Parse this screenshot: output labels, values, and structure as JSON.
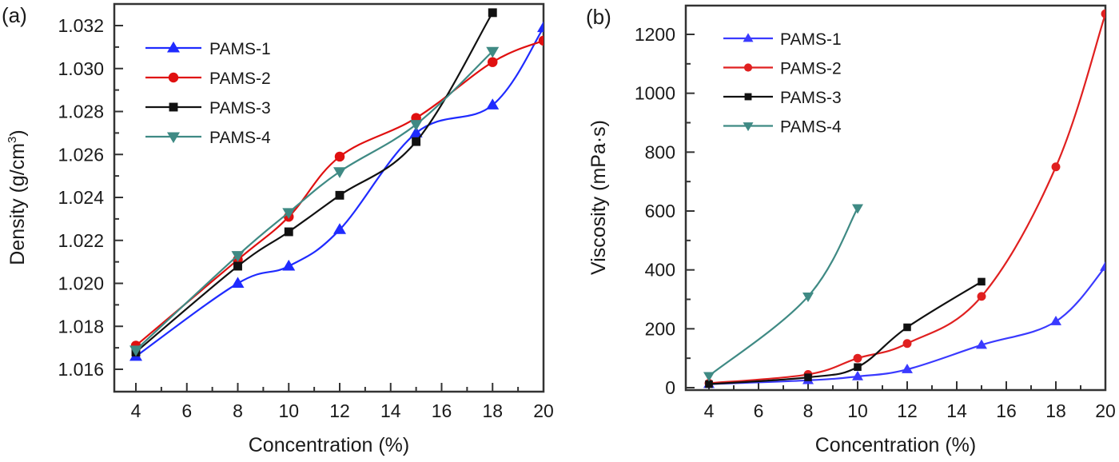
{
  "chart_data": [
    {
      "id": "a",
      "type": "line",
      "panel_label": "(a)",
      "title": "",
      "xlabel": "Concentration (%)",
      "ylabel": "Density (g/cm³)",
      "ylabel_parts": {
        "main": "Density (g/cm",
        "sup": "3",
        "end": ")"
      },
      "xlim": [
        4,
        20
      ],
      "ylim": [
        1.015,
        1.0332
      ],
      "xticks": [
        4,
        6,
        8,
        10,
        12,
        14,
        16,
        18,
        20
      ],
      "xtick_labels": [
        "4",
        "6",
        "8",
        "10",
        "12",
        "14",
        "16",
        "18",
        "20"
      ],
      "yticks": [
        1.016,
        1.018,
        1.02,
        1.022,
        1.024,
        1.026,
        1.028,
        1.03,
        1.032
      ],
      "ytick_labels": [
        "1.016",
        "1.018",
        "1.020",
        "1.022",
        "1.024",
        "1.026",
        "1.028",
        "1.030",
        "1.032"
      ],
      "grid": false,
      "legend_position": "top-left",
      "series": [
        {
          "name": "PAMS-1",
          "color": "#1f2bff",
          "marker": "triangle-up",
          "x": [
            4,
            8,
            10,
            12,
            15,
            18,
            20
          ],
          "values": [
            1.0166,
            1.02,
            1.0208,
            1.0225,
            1.027,
            1.0283,
            1.0319
          ]
        },
        {
          "name": "PAMS-2",
          "color": "#e01010",
          "marker": "circle",
          "x": [
            4,
            8,
            10,
            12,
            15,
            18,
            20
          ],
          "values": [
            1.0171,
            1.0211,
            1.0231,
            1.0259,
            1.0277,
            1.0303,
            1.0313
          ]
        },
        {
          "name": "PAMS-3",
          "color": "#111111",
          "marker": "square",
          "x": [
            4,
            8,
            10,
            12,
            15,
            18
          ],
          "values": [
            1.0168,
            1.0208,
            1.0224,
            1.0241,
            1.0266,
            1.0326
          ]
        },
        {
          "name": "PAMS-4",
          "color": "#3f8a84",
          "marker": "triangle-down",
          "x": [
            4,
            8,
            10,
            12,
            15,
            18
          ],
          "values": [
            1.0169,
            1.0213,
            1.0233,
            1.0252,
            1.0274,
            1.0308
          ]
        }
      ]
    },
    {
      "id": "b",
      "type": "line",
      "panel_label": "(b)",
      "title": "",
      "xlabel": "Concentration (%)",
      "ylabel": "Viscosity (mPa·s)",
      "xlim": [
        4,
        20
      ],
      "ylim": [
        -8,
        1300
      ],
      "xticks": [
        4,
        6,
        8,
        10,
        12,
        14,
        16,
        18,
        20
      ],
      "xtick_labels": [
        "4",
        "6",
        "8",
        "10",
        "12",
        "14",
        "16",
        "18",
        "20"
      ],
      "yticks": [
        0,
        200,
        400,
        600,
        800,
        1000,
        1200
      ],
      "ytick_labels": [
        "0",
        "200",
        "400",
        "600",
        "800",
        "1000",
        "1200"
      ],
      "grid": false,
      "legend_position": "top-left",
      "series": [
        {
          "name": "PAMS-1",
          "color": "#3a3aff",
          "marker": "triangle-up",
          "x": [
            4,
            8,
            10,
            12,
            15,
            18,
            20
          ],
          "values": [
            12,
            25,
            38,
            62,
            145,
            225,
            410
          ]
        },
        {
          "name": "PAMS-2",
          "color": "#e02020",
          "marker": "circle",
          "x": [
            4,
            8,
            10,
            12,
            15,
            18,
            20
          ],
          "values": [
            15,
            45,
            100,
            150,
            310,
            750,
            1270
          ]
        },
        {
          "name": "PAMS-3",
          "color": "#111111",
          "marker": "square",
          "x": [
            4,
            8,
            10,
            12,
            15
          ],
          "values": [
            12,
            35,
            70,
            205,
            360
          ]
        },
        {
          "name": "PAMS-4",
          "color": "#3f8a84",
          "marker": "triangle-down",
          "x": [
            4,
            8,
            10
          ],
          "values": [
            40,
            310,
            610
          ]
        }
      ]
    }
  ]
}
